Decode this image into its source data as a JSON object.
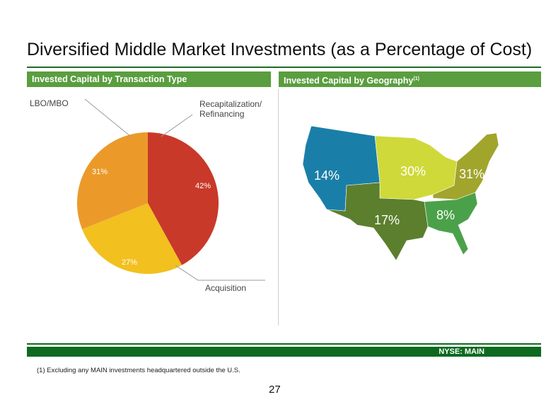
{
  "title": "Diversified Middle Market Investments (as a Percentage of Cost)",
  "left_panel": {
    "header": "Invested Capital by Transaction Type"
  },
  "right_panel": {
    "header": "Invested Capital by Geography",
    "header_note": "(1)"
  },
  "chart_data": [
    {
      "type": "pie",
      "title": "Invested Capital by Transaction Type",
      "categories": [
        "Recapitalization/ Refinancing",
        "Acquisition",
        "LBO/MBO"
      ],
      "slices": [
        {
          "label": "Recapitalization/\nRefinancing",
          "value": 42,
          "value_label": "42%",
          "color": "#c8392a"
        },
        {
          "label": "Acquisition",
          "value": 27,
          "value_label": "27%",
          "color": "#f2c01f"
        },
        {
          "label": "LBO/MBO",
          "value": 31,
          "value_label": "31%",
          "color": "#eb9a2a"
        }
      ]
    },
    {
      "type": "map",
      "title": "Invested Capital by Geography",
      "regions": [
        {
          "value": 14,
          "value_label": "14%",
          "color": "#1a7fa8"
        },
        {
          "value": 30,
          "value_label": "30%",
          "color": "#cfd93a"
        },
        {
          "value": 31,
          "value_label": "31%",
          "color": "#a1a52c"
        },
        {
          "value": 17,
          "value_label": "17%",
          "color": "#5c7f2e"
        },
        {
          "value": 8,
          "value_label": "8%",
          "color": "#4ba14a"
        }
      ]
    }
  ],
  "labels": {
    "lbo": "LBO/MBO",
    "recap_line1": "Recapitalization/",
    "recap_line2": "Refinancing",
    "acquisition": "Acquisition"
  },
  "footer": {
    "ticker": "NYSE:  MAIN"
  },
  "footnote": "(1)   Excluding any MAIN investments headquartered outside the U.S.",
  "page_number": "27"
}
